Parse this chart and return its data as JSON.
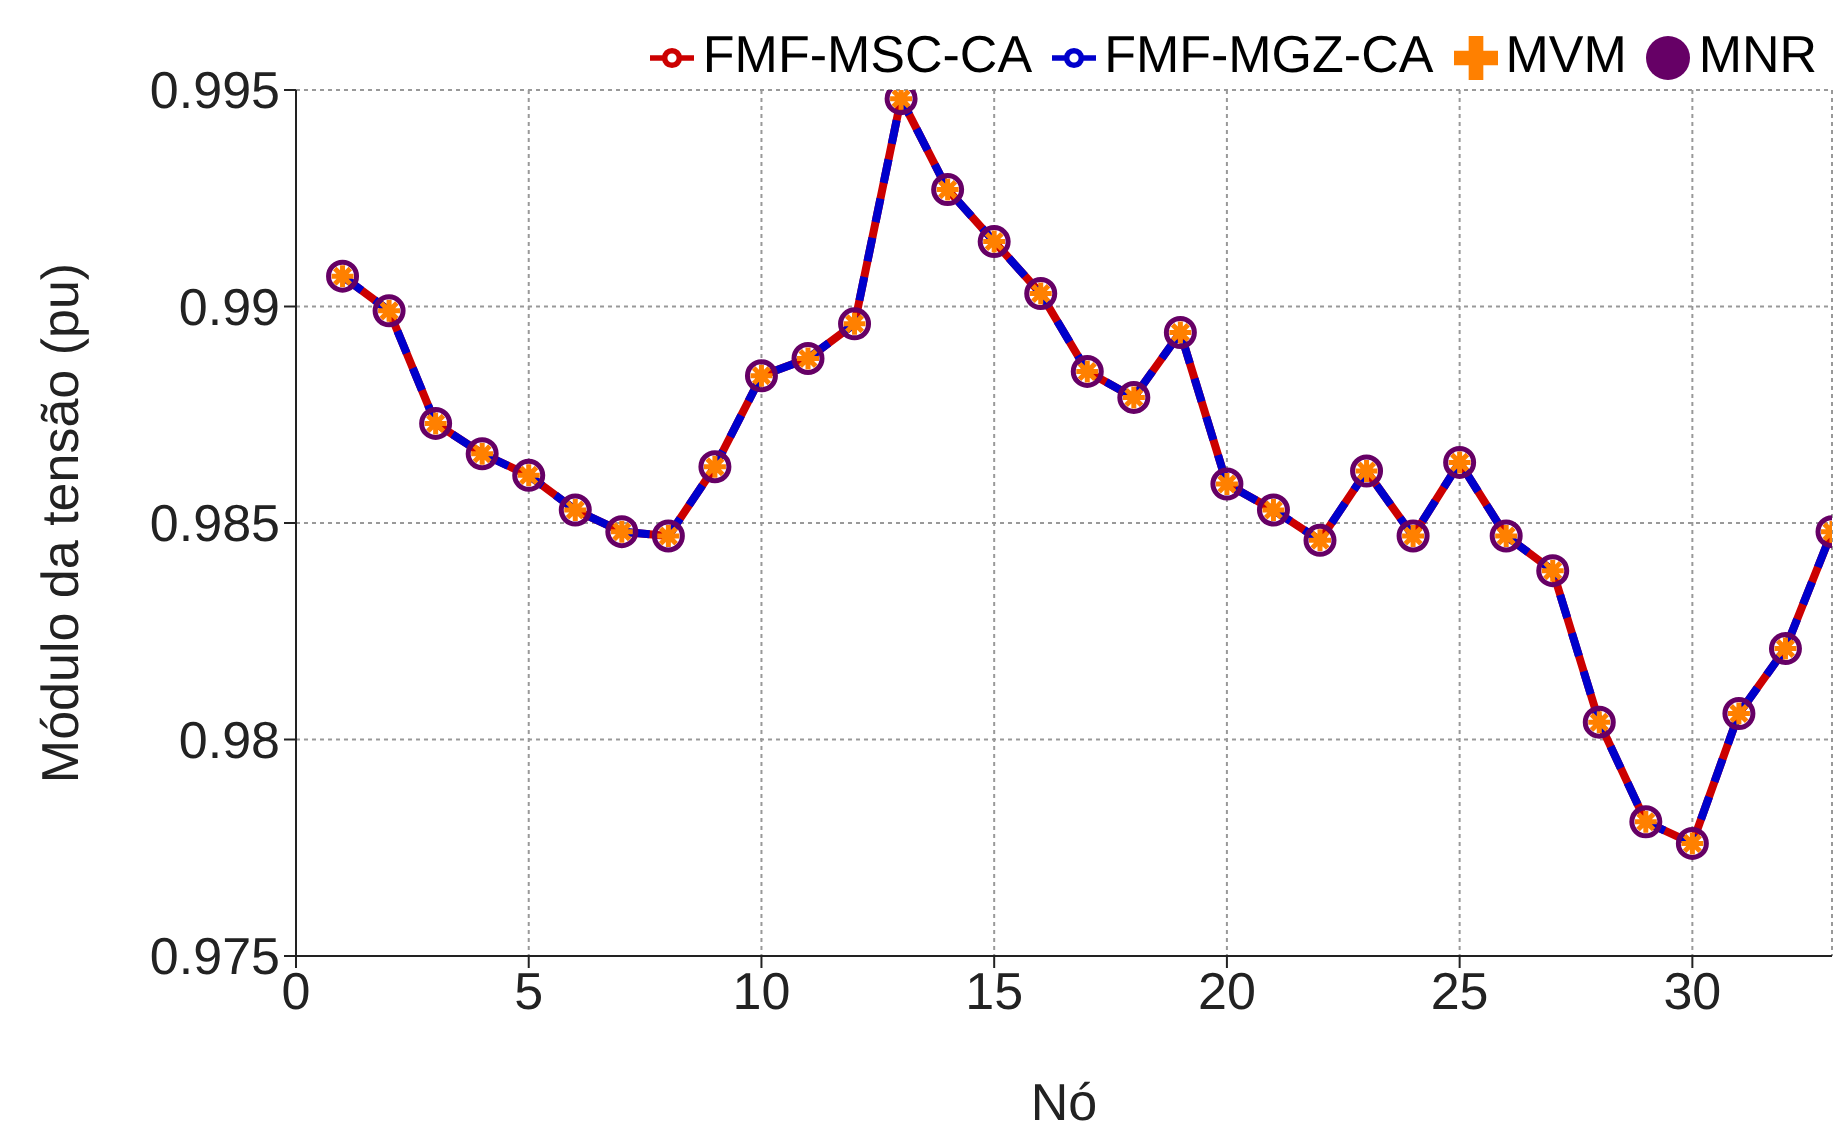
{
  "chart_data": {
    "type": "line",
    "xlabel": "Nó",
    "ylabel": "Módulo da tensão (pu)",
    "x": [
      1,
      2,
      3,
      4,
      5,
      6,
      7,
      8,
      9,
      10,
      11,
      12,
      13,
      14,
      15,
      16,
      17,
      18,
      19,
      20,
      21,
      22,
      23,
      24,
      25,
      26,
      27,
      28,
      29,
      30,
      31,
      32,
      33
    ],
    "series": [
      {
        "name": "FMF-MSC-CA",
        "type": "line",
        "color": "#cc0000",
        "line_style": "solid",
        "marker": "none",
        "values": [
          0.9907,
          0.9899,
          0.9873,
          0.9866,
          0.9861,
          0.9853,
          0.9848,
          0.9847,
          0.9863,
          0.9884,
          0.9888,
          0.9896,
          0.9948,
          0.9927,
          0.9915,
          0.9903,
          0.9885,
          0.9879,
          0.9894,
          0.9859,
          0.9853,
          0.9846,
          0.9862,
          0.9847,
          0.9864,
          0.9847,
          0.9839,
          0.9804,
          0.9781,
          0.9776,
          0.9806,
          0.9821,
          0.9848
        ]
      },
      {
        "name": "FMF-MGZ-CA",
        "type": "line",
        "color": "#0000cc",
        "line_style": "dashed",
        "marker": "none",
        "values": [
          0.9907,
          0.9899,
          0.9873,
          0.9866,
          0.9861,
          0.9853,
          0.9848,
          0.9847,
          0.9863,
          0.9884,
          0.9888,
          0.9896,
          0.9948,
          0.9927,
          0.9915,
          0.9903,
          0.9885,
          0.9879,
          0.9894,
          0.9859,
          0.9853,
          0.9846,
          0.9862,
          0.9847,
          0.9864,
          0.9847,
          0.9839,
          0.9804,
          0.9781,
          0.9776,
          0.9806,
          0.9821,
          0.9848
        ]
      },
      {
        "name": "MVM",
        "type": "scatter",
        "color": "#ff8000",
        "marker": "cross",
        "values": [
          0.9907,
          0.9899,
          0.9873,
          0.9866,
          0.9861,
          0.9853,
          0.9848,
          0.9847,
          0.9863,
          0.9884,
          0.9888,
          0.9896,
          0.9948,
          0.9927,
          0.9915,
          0.9903,
          0.9885,
          0.9879,
          0.9894,
          0.9859,
          0.9853,
          0.9846,
          0.9862,
          0.9847,
          0.9864,
          0.9847,
          0.9839,
          0.9804,
          0.9781,
          0.9776,
          0.9806,
          0.9821,
          0.9848
        ]
      },
      {
        "name": "MNR",
        "type": "scatter",
        "color": "#660066",
        "marker": "circle",
        "values": [
          0.9907,
          0.9899,
          0.9873,
          0.9866,
          0.9861,
          0.9853,
          0.9848,
          0.9847,
          0.9863,
          0.9884,
          0.9888,
          0.9896,
          0.9948,
          0.9927,
          0.9915,
          0.9903,
          0.9885,
          0.9879,
          0.9894,
          0.9859,
          0.9853,
          0.9846,
          0.9862,
          0.9847,
          0.9864,
          0.9847,
          0.9839,
          0.9804,
          0.9781,
          0.9776,
          0.9806,
          0.9821,
          0.9848
        ]
      }
    ],
    "xlim": [
      0,
      33
    ],
    "xticks": [
      0,
      5,
      10,
      15,
      20,
      25,
      30
    ],
    "ylim": [
      0.975,
      0.995
    ],
    "yticks": [
      0.975,
      0.98,
      0.985,
      0.99,
      0.995
    ],
    "grid": true,
    "legend": "top"
  }
}
